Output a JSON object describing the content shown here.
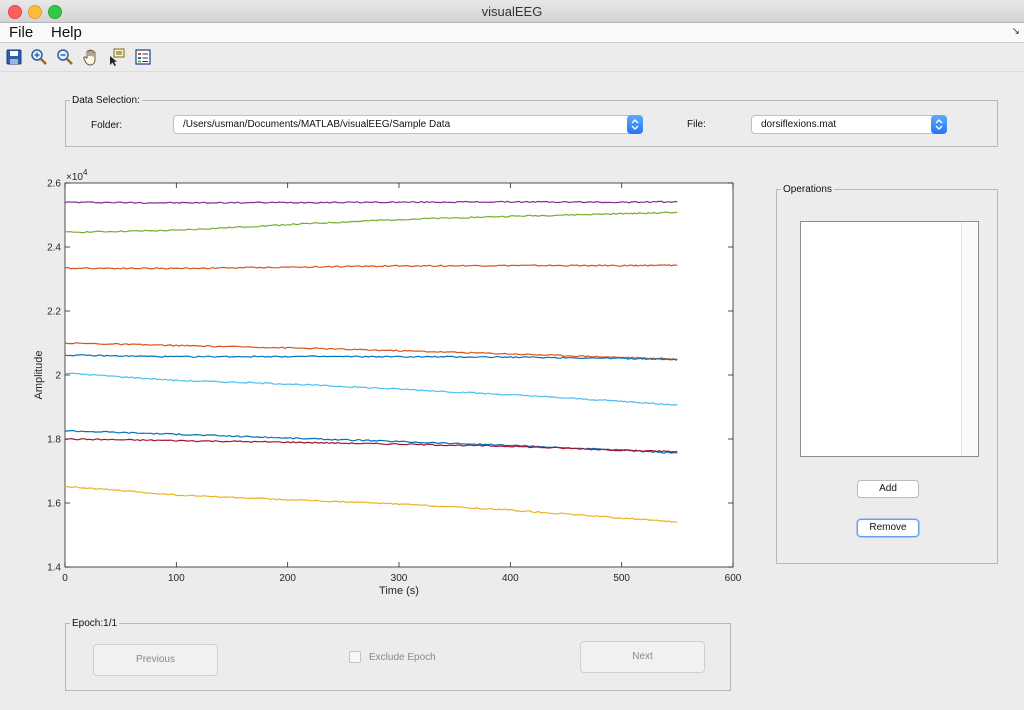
{
  "window": {
    "title": "visualEEG"
  },
  "menu": {
    "file": "File",
    "help": "Help",
    "overflow_arrow": "↘"
  },
  "toolbar": {
    "icons": [
      "save-icon",
      "zoom-in-icon",
      "zoom-out-icon",
      "pan-hand-icon",
      "data-cursor-icon",
      "legend-icon"
    ]
  },
  "data_selection": {
    "title": "Data Selection:",
    "folder_label": "Folder:",
    "folder_value": "/Users/usman/Documents/MATLAB/visualEEG/Sample Data",
    "file_label": "File:",
    "file_value": "dorsiflexions.mat"
  },
  "operations": {
    "title": "Operations",
    "add_label": "Add",
    "remove_label": "Remove",
    "items": []
  },
  "epoch": {
    "title": "Epoch:1/1",
    "previous_label": "Previous",
    "exclude_label": "Exclude Epoch",
    "exclude_checked": false,
    "next_label": "Next"
  },
  "chart_data": {
    "type": "line",
    "xlabel": "Time (s)",
    "ylabel": "Amplitude",
    "y_exponent_label": "×10",
    "y_exponent": "4",
    "xlim": [
      0,
      600
    ],
    "ylim": [
      14000,
      26000
    ],
    "xticks": [
      0,
      100,
      200,
      300,
      400,
      500,
      600
    ],
    "yticks": [
      14000,
      16000,
      18000,
      20000,
      22000,
      24000,
      26000
    ],
    "ytick_labels": [
      "1.4",
      "1.6",
      "1.8",
      "2",
      "2.2",
      "2.4",
      "2.6"
    ],
    "grid": false,
    "series": [
      {
        "color": "#7e2f8e",
        "x": [
          0,
          100,
          200,
          300,
          400,
          500,
          550
        ],
        "values": [
          25400,
          25380,
          25390,
          25400,
          25410,
          25400,
          25410
        ]
      },
      {
        "color": "#77ac30",
        "x": [
          0,
          100,
          200,
          300,
          400,
          500,
          550
        ],
        "values": [
          24460,
          24520,
          24700,
          24860,
          24960,
          25040,
          25080
        ]
      },
      {
        "color": "#d95319",
        "x": [
          0,
          100,
          200,
          300,
          400,
          500,
          550
        ],
        "values": [
          23340,
          23330,
          23370,
          23410,
          23420,
          23420,
          23430
        ]
      },
      {
        "color": "#d95319",
        "x": [
          0,
          100,
          200,
          300,
          400,
          500,
          550
        ],
        "values": [
          21000,
          20920,
          20850,
          20760,
          20660,
          20550,
          20500
        ]
      },
      {
        "color": "#0072bd",
        "x": [
          0,
          100,
          200,
          300,
          400,
          500,
          550
        ],
        "values": [
          20620,
          20570,
          20580,
          20570,
          20560,
          20520,
          20480
        ]
      },
      {
        "color": "#4dbeee",
        "x": [
          0,
          100,
          200,
          300,
          400,
          500,
          550
        ],
        "values": [
          20060,
          19830,
          19720,
          19560,
          19380,
          19180,
          19060
        ]
      },
      {
        "color": "#0072bd",
        "x": [
          0,
          100,
          200,
          300,
          400,
          500,
          550
        ],
        "values": [
          18260,
          18150,
          18030,
          17920,
          17800,
          17650,
          17560
        ]
      },
      {
        "color": "#a2142f",
        "x": [
          0,
          100,
          200,
          300,
          400,
          500,
          550
        ],
        "values": [
          18000,
          17950,
          17900,
          17840,
          17770,
          17650,
          17600
        ]
      },
      {
        "color": "#edb120",
        "x": [
          0,
          100,
          200,
          300,
          400,
          500,
          550
        ],
        "values": [
          16520,
          16250,
          16100,
          15970,
          15780,
          15530,
          15400
        ]
      }
    ]
  }
}
